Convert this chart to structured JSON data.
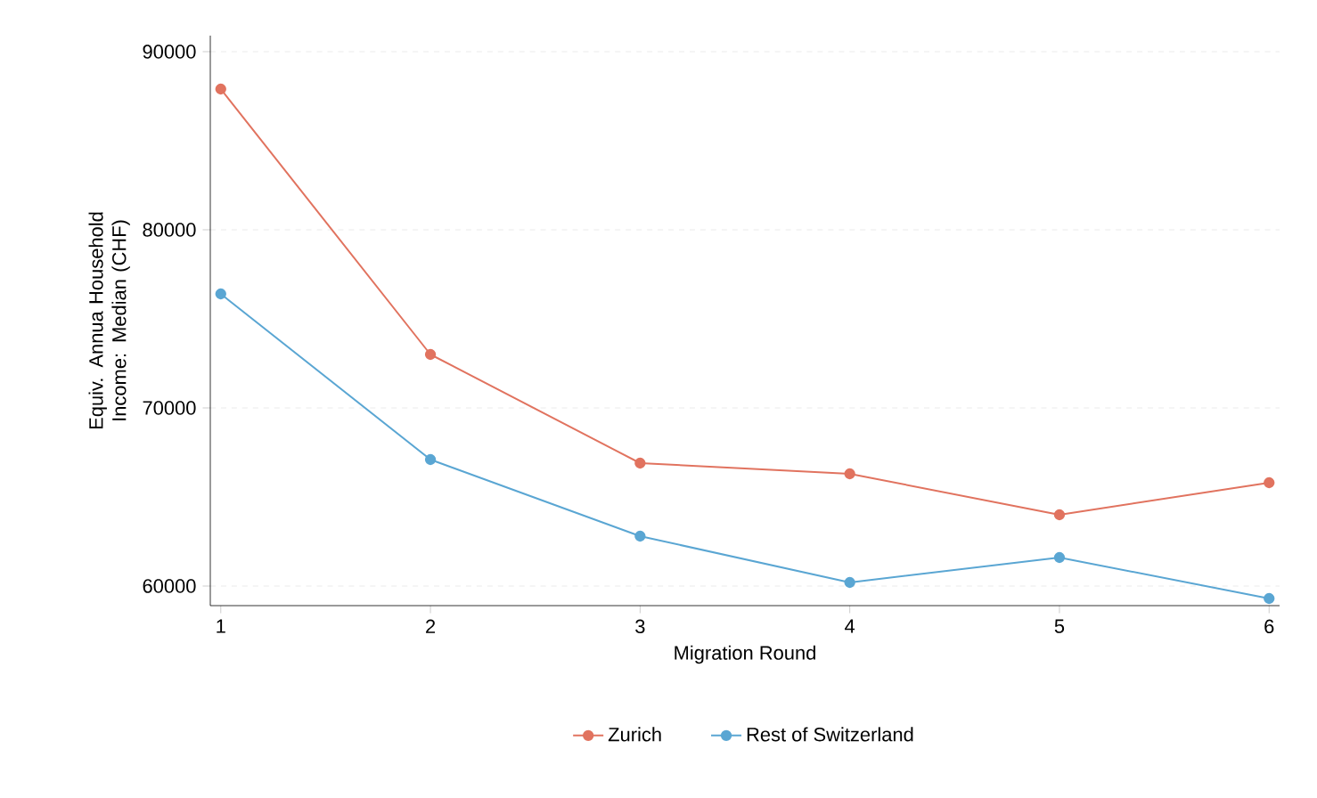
{
  "chart_data": {
    "type": "line",
    "xlabel": "Migration Round",
    "ylabel": "Equiv. Annua Household Income: Median (CHF)",
    "x": [
      1,
      2,
      3,
      4,
      5,
      6
    ],
    "series": [
      {
        "name": "Zurich",
        "color": "#e1735f",
        "values": [
          87900,
          73000,
          66900,
          66300,
          64000,
          65800
        ]
      },
      {
        "name": "Rest of Switzerland",
        "color": "#5aa6d3",
        "values": [
          76400,
          67100,
          62800,
          60200,
          61600,
          59300
        ]
      }
    ],
    "xlim": [
      0.95,
      6.05
    ],
    "ylim": [
      58900,
      90900
    ],
    "xticks": [
      1,
      2,
      3,
      4,
      5,
      6
    ],
    "yticks": [
      60000,
      70000,
      80000,
      90000
    ],
    "grid": "y",
    "legend": "bottom",
    "marker": "circle",
    "line_style": "solid"
  }
}
